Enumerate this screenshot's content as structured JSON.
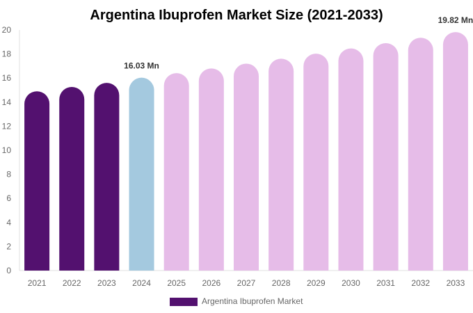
{
  "chart_data": {
    "type": "bar",
    "title": "Argentina Ibuprofen Market Size (2021-2033)",
    "xlabel": "",
    "ylabel": "",
    "ylim": [
      0,
      20
    ],
    "yticks": [
      0,
      2,
      4,
      6,
      8,
      10,
      12,
      14,
      16,
      18,
      20
    ],
    "categories": [
      "2021",
      "2022",
      "2023",
      "2024",
      "2025",
      "2026",
      "2027",
      "2028",
      "2029",
      "2030",
      "2031",
      "2032",
      "2033"
    ],
    "series": [
      {
        "name": "Argentina Ibuprofen Market",
        "values": [
          14.9,
          15.26,
          15.6,
          16.03,
          16.41,
          16.8,
          17.2,
          17.61,
          18.03,
          18.46,
          18.9,
          19.35,
          19.82
        ]
      }
    ],
    "data_labels": [
      {
        "category": "2024",
        "text": "16.03 Mn"
      },
      {
        "category": "2033",
        "text": "19.82 Mn"
      }
    ],
    "bar_colors": [
      "#53116f",
      "#53116f",
      "#53116f",
      "#a4c9df",
      "#e6bce8",
      "#e6bce8",
      "#e6bce8",
      "#e6bce8",
      "#e6bce8",
      "#e6bce8",
      "#e6bce8",
      "#e6bce8",
      "#e6bce8"
    ],
    "legend": {
      "placement": "bottom",
      "label": "Argentina Ibuprofen Market",
      "color": "#53116f"
    },
    "grid": false
  }
}
